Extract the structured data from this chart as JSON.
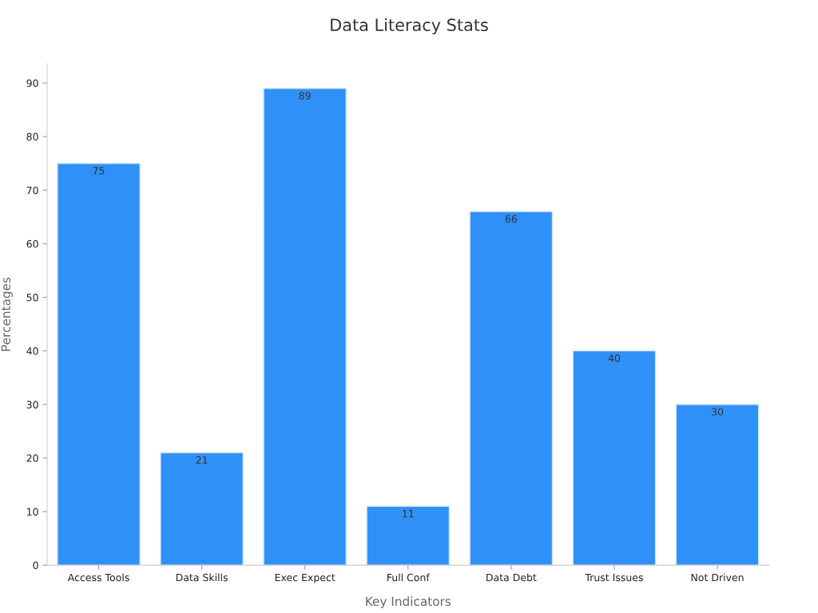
{
  "chart_data": {
    "type": "bar",
    "title": "Data Literacy Stats",
    "xlabel": "Key Indicators",
    "ylabel": "Percentages",
    "categories": [
      "Access Tools",
      "Data Skills",
      "Exec Expect",
      "Full Conf",
      "Data Debt",
      "Trust Issues",
      "Not Driven"
    ],
    "values": [
      75,
      21,
      89,
      11,
      66,
      40,
      30
    ],
    "color": "#2f91f8",
    "ylim": [
      0,
      93.6
    ],
    "yticks": [
      0,
      10,
      20,
      30,
      40,
      50,
      60,
      70,
      80,
      90
    ],
    "grid": false,
    "data_labels": true
  }
}
